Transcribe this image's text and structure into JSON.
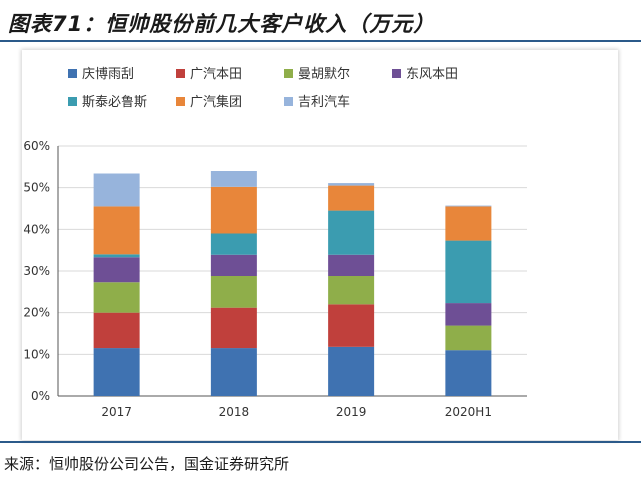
{
  "header": {
    "title": "图表71：恒帅股份前几大客户收入（万元）"
  },
  "footer": {
    "source": "来源：恒帅股份公司公告，国金证券研究所"
  },
  "chart_data": {
    "type": "bar",
    "stacked": true,
    "title": "",
    "xlabel": "",
    "ylabel": "",
    "categories": [
      "2017",
      "2018",
      "2019",
      "2020H1"
    ],
    "ylim": [
      0,
      60
    ],
    "yticks": [
      0,
      10,
      20,
      30,
      40,
      50,
      60
    ],
    "ytick_labels": [
      "0%",
      "10%",
      "20%",
      "30%",
      "40%",
      "50%",
      "60%"
    ],
    "grid": true,
    "legend_position": "top",
    "series": [
      {
        "name": "庆博雨刮",
        "color": "#3f72b1",
        "values": [
          11.5,
          11.5,
          11.8,
          11.0
        ]
      },
      {
        "name": "广汽本田",
        "color": "#c0403c",
        "values": [
          8.5,
          9.7,
          10.2,
          0
        ]
      },
      {
        "name": "曼胡默尔",
        "color": "#8fae4a",
        "values": [
          7.3,
          7.6,
          6.8,
          5.9
        ]
      },
      {
        "name": "东风本田",
        "color": "#6e4f95",
        "values": [
          6.0,
          5.1,
          5.1,
          5.4
        ]
      },
      {
        "name": "斯泰必鲁斯",
        "color": "#3b9cb0",
        "values": [
          0.7,
          5.1,
          10.6,
          15.0
        ]
      },
      {
        "name": "广汽集团",
        "color": "#e8863a",
        "values": [
          11.5,
          11.2,
          6.0,
          8.2
        ]
      },
      {
        "name": "吉利汽车",
        "color": "#97b4dc",
        "values": [
          7.9,
          3.8,
          0.6,
          0.2
        ]
      }
    ]
  }
}
